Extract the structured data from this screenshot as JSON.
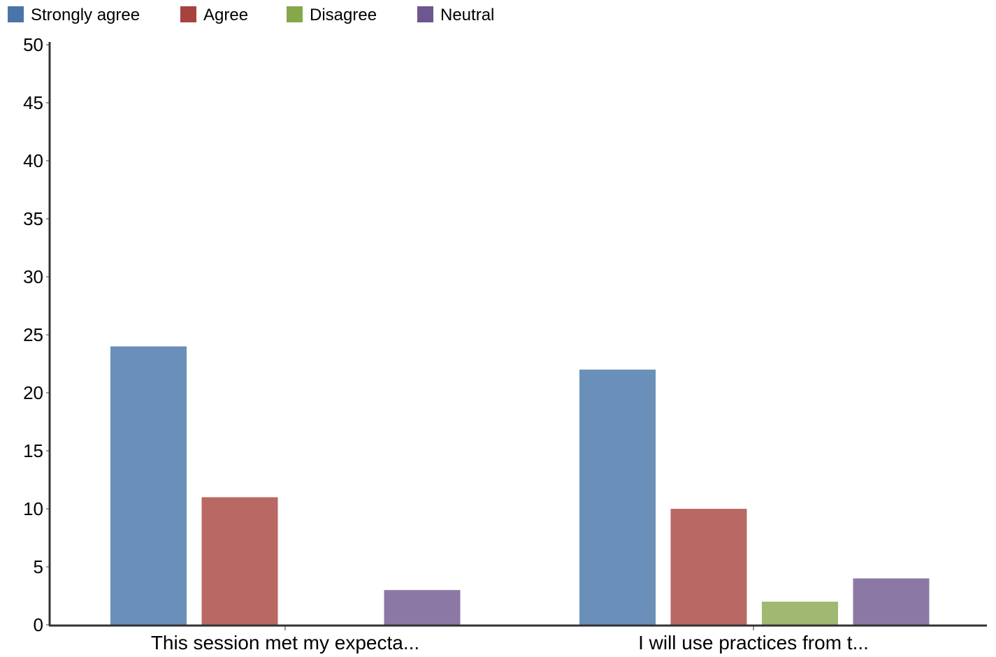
{
  "chart_data": {
    "type": "bar",
    "title": "",
    "xlabel": "",
    "ylabel": "",
    "ylim": [
      0,
      50
    ],
    "yticks": [
      0,
      5,
      10,
      15,
      20,
      25,
      30,
      35,
      40,
      45,
      50
    ],
    "categories": [
      "This session met my expecta...",
      "I will use practices from t..."
    ],
    "series": [
      {
        "name": "Strongly agree",
        "legend_color": "#4a75a8",
        "bar_color": "#6a8fb8",
        "values": [
          24,
          22
        ]
      },
      {
        "name": "Agree",
        "legend_color": "#a8423f",
        "bar_color": "#b96864",
        "values": [
          11,
          10
        ]
      },
      {
        "name": "Disagree",
        "legend_color": "#86a84a",
        "bar_color": "#a0b872",
        "values": [
          0,
          2
        ]
      },
      {
        "name": "Neutral",
        "legend_color": "#6e568f",
        "bar_color": "#8b78a4",
        "values": [
          3,
          4
        ]
      }
    ],
    "legend_position": "top-left",
    "grid": false
  }
}
